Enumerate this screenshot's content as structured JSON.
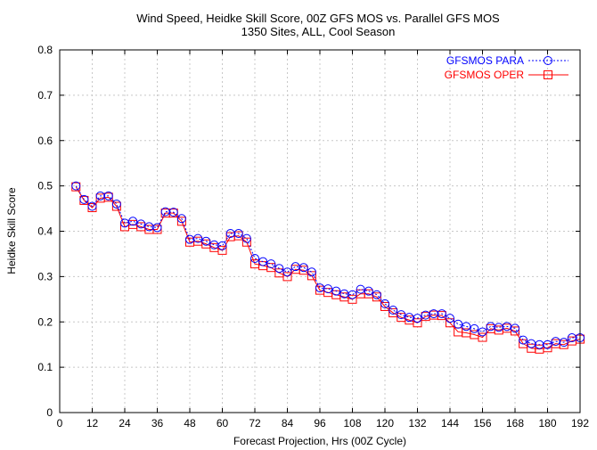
{
  "chart_data": {
    "type": "line",
    "title": "Wind Speed, Heidke Skill Score, 00Z GFS MOS vs. Parallel GFS MOS",
    "subtitle": "1350 Sites, ALL, Cool Season",
    "xlabel": "Forecast Projection, Hrs (00Z Cycle)",
    "ylabel": "Heidke Skill Score",
    "xlim": [
      0,
      192
    ],
    "ylim": [
      0,
      0.8
    ],
    "xticks": [
      "0",
      "12",
      "24",
      "36",
      "48",
      "60",
      "72",
      "84",
      "96",
      "108",
      "120",
      "132",
      "144",
      "156",
      "168",
      "180",
      "192"
    ],
    "yticks": [
      "0",
      "0.1",
      "0.2",
      "0.3",
      "0.4",
      "0.5",
      "0.6",
      "0.7",
      "0.8"
    ],
    "grid": true,
    "legend_position": "top-right",
    "x": [
      6,
      9,
      12,
      15,
      18,
      21,
      24,
      27,
      30,
      33,
      36,
      39,
      42,
      45,
      48,
      51,
      54,
      57,
      60,
      63,
      66,
      69,
      72,
      75,
      78,
      81,
      84,
      87,
      90,
      93,
      96,
      99,
      102,
      105,
      108,
      111,
      114,
      117,
      120,
      123,
      126,
      129,
      132,
      135,
      138,
      141,
      144,
      147,
      150,
      153,
      156,
      159,
      162,
      165,
      168,
      171,
      174,
      177,
      180,
      183,
      186,
      189,
      192
    ],
    "series": [
      {
        "name": "GFSMOS PARA",
        "color": "#0000ff",
        "marker": "circle",
        "line": "dotted",
        "values": [
          0.5,
          0.47,
          0.455,
          0.478,
          0.478,
          0.46,
          0.418,
          0.422,
          0.416,
          0.41,
          0.408,
          0.443,
          0.442,
          0.428,
          0.382,
          0.384,
          0.378,
          0.37,
          0.368,
          0.395,
          0.395,
          0.384,
          0.34,
          0.333,
          0.328,
          0.318,
          0.31,
          0.322,
          0.32,
          0.31,
          0.275,
          0.273,
          0.268,
          0.262,
          0.26,
          0.272,
          0.268,
          0.26,
          0.24,
          0.226,
          0.216,
          0.21,
          0.208,
          0.215,
          0.218,
          0.218,
          0.208,
          0.195,
          0.19,
          0.185,
          0.178,
          0.19,
          0.188,
          0.19,
          0.186,
          0.16,
          0.152,
          0.15,
          0.15,
          0.157,
          0.155,
          0.165,
          0.165
        ]
      },
      {
        "name": "GFSMOS OPER",
        "color": "#ff0000",
        "marker": "square",
        "line": "solid",
        "values": [
          0.498,
          0.468,
          0.452,
          0.473,
          0.475,
          0.455,
          0.41,
          0.415,
          0.41,
          0.404,
          0.404,
          0.44,
          0.44,
          0.422,
          0.376,
          0.378,
          0.372,
          0.364,
          0.358,
          0.388,
          0.39,
          0.376,
          0.328,
          0.324,
          0.32,
          0.308,
          0.3,
          0.316,
          0.314,
          0.302,
          0.27,
          0.265,
          0.26,
          0.255,
          0.25,
          0.262,
          0.262,
          0.255,
          0.234,
          0.22,
          0.21,
          0.204,
          0.198,
          0.212,
          0.215,
          0.214,
          0.198,
          0.178,
          0.176,
          0.172,
          0.166,
          0.185,
          0.182,
          0.186,
          0.18,
          0.152,
          0.142,
          0.14,
          0.143,
          0.152,
          0.15,
          0.158,
          0.162
        ]
      }
    ]
  }
}
